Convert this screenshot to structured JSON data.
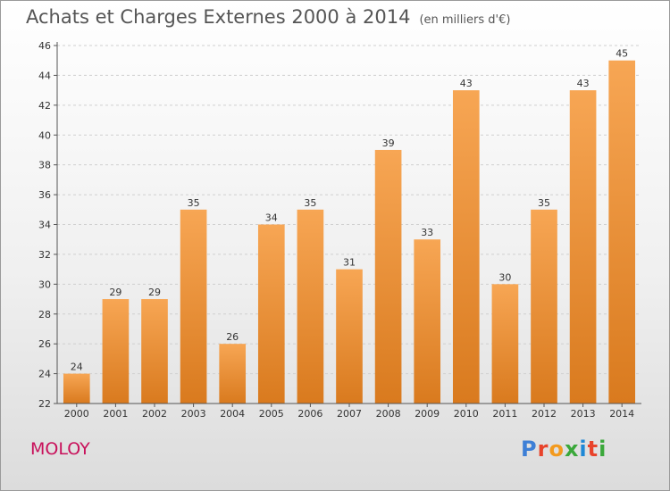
{
  "header": {
    "title": "Achats et Charges Externes 2000 à 2014",
    "subtitle": "(en milliers d'€)"
  },
  "footer": {
    "town": "MOLOY",
    "logo_letters": [
      "P",
      "r",
      "o",
      "x",
      "i",
      "t",
      "i"
    ],
    "logo_colors": [
      "#3d7fd6",
      "#e8432b",
      "#f39a1e",
      "#3aa83a",
      "#1e88d6",
      "#e8432b",
      "#3aa83a"
    ]
  },
  "colors": {
    "bar_light": "#f7a654",
    "bar_dark": "#d97a1e",
    "grid": "#cfcfcf",
    "axis": "#555555"
  },
  "chart_data": {
    "type": "bar",
    "categories": [
      "2000",
      "2001",
      "2002",
      "2003",
      "2004",
      "2005",
      "2006",
      "2007",
      "2008",
      "2009",
      "2010",
      "2011",
      "2012",
      "2013",
      "2014"
    ],
    "values": [
      24,
      29,
      29,
      35,
      26,
      34,
      35,
      31,
      39,
      33,
      43,
      30,
      35,
      43,
      45
    ],
    "ylim": [
      22,
      46
    ],
    "yticks": [
      22,
      24,
      26,
      28,
      30,
      32,
      34,
      36,
      38,
      40,
      42,
      44,
      46
    ],
    "grid": true,
    "xlabel": "",
    "ylabel": ""
  }
}
